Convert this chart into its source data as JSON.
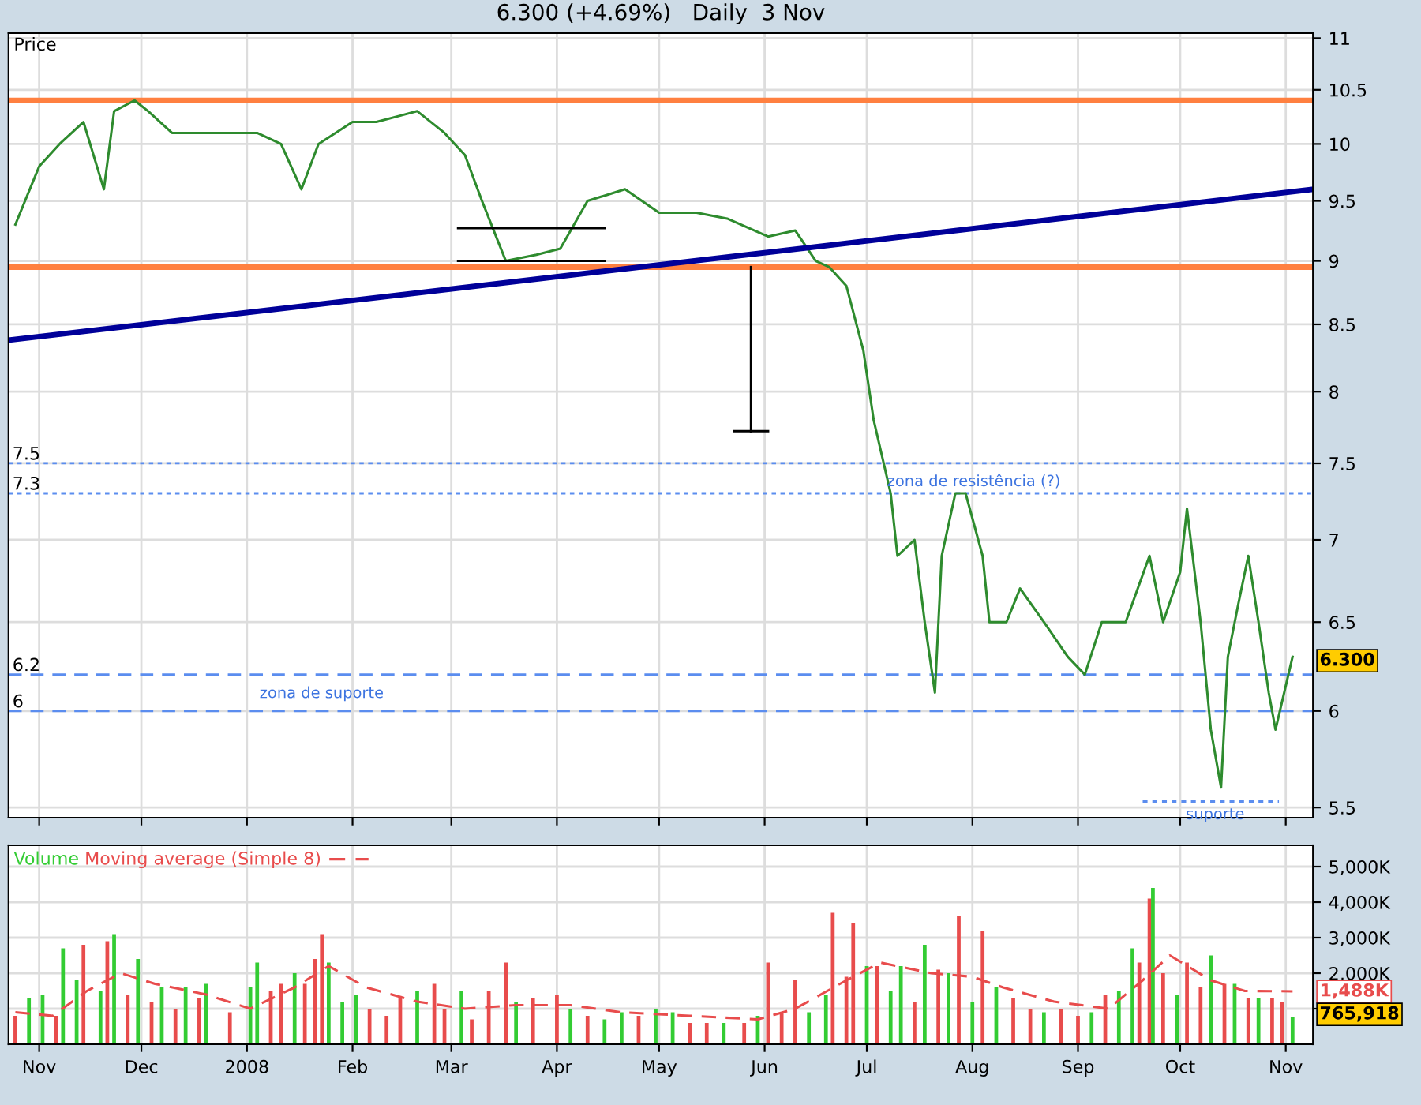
{
  "chart_data": [
    {
      "type": "line",
      "title": "6.300 (+4.69%)   Daily  3 Nov",
      "xlim": [
        "2007-10-23",
        "2008-11-09"
      ],
      "xticks": [
        {
          "value": "2007-11-01",
          "label": null
        },
        {
          "value": "2007-12-01",
          "label": null
        },
        {
          "value": "2008-01-01",
          "label": null
        },
        {
          "value": "2008-02-01",
          "label": null
        },
        {
          "value": "2008-03-01",
          "label": null
        },
        {
          "value": "2008-04-01",
          "label": null
        },
        {
          "value": "2008-05-01",
          "label": null
        },
        {
          "value": "2008-06-01",
          "label": null
        },
        {
          "value": "2008-07-01",
          "label": null
        },
        {
          "value": "2008-08-01",
          "label": null
        },
        {
          "value": "2008-09-01",
          "label": null
        },
        {
          "value": "2008-10-01",
          "label": null
        },
        {
          "value": "2008-11-01",
          "label": null
        }
      ],
      "log": "y",
      "ylim": [
        5.45,
        11.05
      ],
      "yticks": [
        5.5,
        6,
        6.5,
        7,
        7.5,
        8,
        8.5,
        9,
        9.5,
        10,
        10.5,
        11
      ],
      "tick_labels": "y",
      "grid": true,
      "marker": "none",
      "series": [
        {
          "color": "#2e8b2e",
          "x": [
            "2007-10-25",
            "2007-11-01",
            "2007-11-07",
            "2007-11-14",
            "2007-11-20",
            "2007-11-23",
            "2007-11-29",
            "2007-12-03",
            "2007-12-10",
            "2007-12-20",
            "2008-01-04",
            "2008-01-11",
            "2008-01-17",
            "2008-01-22",
            "2008-02-01",
            "2008-02-08",
            "2008-02-20",
            "2008-02-28",
            "2008-03-05",
            "2008-03-10",
            "2008-03-17",
            "2008-03-26",
            "2008-04-02",
            "2008-04-10",
            "2008-04-21",
            "2008-05-01",
            "2008-05-12",
            "2008-05-21",
            "2008-06-02",
            "2008-06-10",
            "2008-06-16",
            "2008-06-20",
            "2008-06-25",
            "2008-06-30",
            "2008-07-03",
            "2008-07-08",
            "2008-07-10",
            "2008-07-15",
            "2008-07-18",
            "2008-07-21",
            "2008-07-23",
            "2008-07-27",
            "2008-07-30",
            "2008-08-04",
            "2008-08-06",
            "2008-08-11",
            "2008-08-15",
            "2008-08-22",
            "2008-08-29",
            "2008-09-03",
            "2008-09-08",
            "2008-09-15",
            "2008-09-22",
            "2008-09-26",
            "2008-10-01",
            "2008-10-03",
            "2008-10-07",
            "2008-10-10",
            "2008-10-13",
            "2008-10-15",
            "2008-10-18",
            "2008-10-21",
            "2008-10-24",
            "2008-10-27",
            "2008-10-29",
            "2008-11-03"
          ],
          "values": [
            9.3,
            9.8,
            10.0,
            10.2,
            9.6,
            10.3,
            10.4,
            10.3,
            10.1,
            10.1,
            10.1,
            10.0,
            9.6,
            10.0,
            10.2,
            10.2,
            10.3,
            10.1,
            9.9,
            9.5,
            9.0,
            9.05,
            9.1,
            9.5,
            9.6,
            9.4,
            9.4,
            9.35,
            9.2,
            9.25,
            9.0,
            8.95,
            8.8,
            8.3,
            7.8,
            7.3,
            6.9,
            7.0,
            6.5,
            6.1,
            6.9,
            7.3,
            7.3,
            6.9,
            6.5,
            6.5,
            6.7,
            6.5,
            6.3,
            6.2,
            6.5,
            6.5,
            6.9,
            6.5,
            6.8,
            7.2,
            6.5,
            5.9,
            5.6,
            6.3,
            6.6,
            6.9,
            6.5,
            6.1,
            5.9,
            6.3
          ]
        },
        {
          "color": "#000099",
          "x": [
            "2007-10-23",
            "2008-11-09"
          ],
          "values": [
            8.38,
            9.6
          ]
        },
        {
          "color": "#000000",
          "x": [
            "2008-03-03",
            "2008-04-15"
          ],
          "values": [
            9.27,
            9.27
          ]
        },
        {
          "color": "#000000",
          "x": [
            "2008-03-03",
            "2008-04-15"
          ],
          "values": [
            9.0,
            9.0
          ]
        },
        {
          "color": "#000000",
          "x": [
            "2008-05-28",
            "2008-05-28"
          ],
          "values": [
            8.95,
            7.72
          ]
        },
        {
          "color": "#000000",
          "x": [
            "2008-05-23",
            "2008-06-02"
          ],
          "values": [
            7.72,
            7.72
          ]
        },
        {
          "color": "#5b8def",
          "line_style": "dotted",
          "x": [
            "2008-09-20",
            "2008-10-30"
          ],
          "values": [
            5.53,
            5.53
          ]
        }
      ],
      "ref_lines": [
        {
          "axis": "y",
          "value": 10.4,
          "label": null,
          "color": "#ff8040",
          "line_style": "solid"
        },
        {
          "axis": "y",
          "value": 8.95,
          "label": null,
          "color": "#ff8040",
          "line_style": "solid"
        },
        {
          "axis": "y",
          "value": 7.5,
          "label": "7.5",
          "color": "#5b8def",
          "line_style": "dotted"
        },
        {
          "axis": "y",
          "value": 7.3,
          "label": "7.3",
          "color": "#5b8def",
          "line_style": "dotted"
        },
        {
          "axis": "y",
          "value": 6.2,
          "label": "6.2",
          "color": "#5b8def",
          "line_style": "dashed"
        },
        {
          "axis": "y",
          "value": 6,
          "label": "6",
          "color": "#5b8def",
          "line_style": "dashed"
        }
      ],
      "annotations": [
        "Price",
        "zona de resistência (?)",
        "zona de suporte",
        "suporte",
        "6.300"
      ]
    },
    {
      "type": "bar",
      "xlim": [
        "2007-10-23",
        "2008-11-09"
      ],
      "xticks": [
        {
          "value": "2007-11-01",
          "label": "Nov"
        },
        {
          "value": "2007-12-01",
          "label": "Dec"
        },
        {
          "value": "2008-01-01",
          "label": "2008"
        },
        {
          "value": "2008-02-01",
          "label": "Feb"
        },
        {
          "value": "2008-03-01",
          "label": "Mar"
        },
        {
          "value": "2008-04-01",
          "label": "Apr"
        },
        {
          "value": "2008-05-01",
          "label": "May"
        },
        {
          "value": "2008-06-01",
          "label": "Jun"
        },
        {
          "value": "2008-07-01",
          "label": "Jul"
        },
        {
          "value": "2008-08-01",
          "label": "Aug"
        },
        {
          "value": "2008-09-01",
          "label": "Sep"
        },
        {
          "value": "2008-10-01",
          "label": "Oct"
        },
        {
          "value": "2008-11-01",
          "label": "Nov"
        }
      ],
      "ylim": [
        0,
        5600000
      ],
      "yticks": [
        {
          "value": 1000000,
          "label": null
        },
        {
          "value": 2000000,
          "label": "2,000K"
        },
        {
          "value": 3000000,
          "label": "3,000K"
        },
        {
          "value": 4000000,
          "label": "4,000K"
        },
        {
          "value": 5000000,
          "label": "5,000K"
        }
      ],
      "grid": true,
      "series": [
        {
          "name": "Volume",
          "color": "#33cc33",
          "x": [
            "2007-10-25",
            "2007-10-29",
            "2007-11-02",
            "2007-11-06",
            "2007-11-08",
            "2007-11-12",
            "2007-11-14",
            "2007-11-19",
            "2007-11-21",
            "2007-11-23",
            "2007-11-27",
            "2007-11-30",
            "2007-12-04",
            "2007-12-07",
            "2007-12-11",
            "2007-12-14",
            "2007-12-18",
            "2007-12-20",
            "2007-12-27",
            "2008-01-02",
            "2008-01-04",
            "2008-01-08",
            "2008-01-11",
            "2008-01-15",
            "2008-01-18",
            "2008-01-21",
            "2008-01-23",
            "2008-01-25",
            "2008-01-29",
            "2008-02-02",
            "2008-02-06",
            "2008-02-11",
            "2008-02-15",
            "2008-02-20",
            "2008-02-25",
            "2008-02-28",
            "2008-03-04",
            "2008-03-07",
            "2008-03-12",
            "2008-03-17",
            "2008-03-20",
            "2008-03-25",
            "2008-04-01",
            "2008-04-05",
            "2008-04-10",
            "2008-04-15",
            "2008-04-20",
            "2008-04-25",
            "2008-04-30",
            "2008-05-05",
            "2008-05-10",
            "2008-05-15",
            "2008-05-20",
            "2008-05-26",
            "2008-05-30",
            "2008-06-02",
            "2008-06-06",
            "2008-06-10",
            "2008-06-14",
            "2008-06-19",
            "2008-06-21",
            "2008-06-25",
            "2008-06-27",
            "2008-07-01",
            "2008-07-04",
            "2008-07-08",
            "2008-07-11",
            "2008-07-15",
            "2008-07-18",
            "2008-07-22",
            "2008-07-25",
            "2008-07-28",
            "2008-08-01",
            "2008-08-04",
            "2008-08-08",
            "2008-08-13",
            "2008-08-18",
            "2008-08-22",
            "2008-08-27",
            "2008-09-01",
            "2008-09-05",
            "2008-09-09",
            "2008-09-13",
            "2008-09-17",
            "2008-09-19",
            "2008-09-22",
            "2008-09-23",
            "2008-09-26",
            "2008-09-30",
            "2008-10-03",
            "2008-10-07",
            "2008-10-10",
            "2008-10-14",
            "2008-10-17",
            "2008-10-21",
            "2008-10-24",
            "2008-10-28",
            "2008-10-31",
            "2008-11-03"
          ],
          "values": [
            800000,
            1300000,
            1400000,
            800000,
            2700000,
            1800000,
            2800000,
            1500000,
            2900000,
            3100000,
            1400000,
            2400000,
            1200000,
            1600000,
            1000000,
            1600000,
            1300000,
            1700000,
            900000,
            1600000,
            2300000,
            1500000,
            1700000,
            2000000,
            1700000,
            2400000,
            3100000,
            2300000,
            1200000,
            1400000,
            1000000,
            800000,
            1300000,
            1500000,
            1700000,
            1000000,
            1500000,
            700000,
            1500000,
            2300000,
            1200000,
            1300000,
            1400000,
            1000000,
            800000,
            700000,
            900000,
            800000,
            1000000,
            900000,
            600000,
            600000,
            600000,
            600000,
            800000,
            2300000,
            900000,
            1800000,
            900000,
            1400000,
            3700000,
            1900000,
            3400000,
            2200000,
            2200000,
            1500000,
            2200000,
            1200000,
            2800000,
            2100000,
            2000000,
            3600000,
            1200000,
            3200000,
            1600000,
            1300000,
            1000000,
            900000,
            1000000,
            800000,
            900000,
            1400000,
            1500000,
            2700000,
            2300000,
            4100000,
            4400000,
            2000000,
            1400000,
            2300000,
            1600000,
            2500000,
            1700000,
            1700000,
            1300000,
            1300000,
            1300000,
            1200000,
            770000
          ],
          "colors": [
            "#e84c4c",
            "#33cc33",
            "#33cc33",
            "#e84c4c",
            "#33cc33",
            "#33cc33",
            "#e84c4c",
            "#33cc33",
            "#e84c4c",
            "#33cc33",
            "#e84c4c",
            "#33cc33",
            "#e84c4c",
            "#33cc33",
            "#e84c4c",
            "#33cc33",
            "#e84c4c",
            "#33cc33",
            "#e84c4c",
            "#33cc33",
            "#33cc33",
            "#e84c4c",
            "#e84c4c",
            "#33cc33",
            "#e84c4c",
            "#e84c4c",
            "#e84c4c",
            "#33cc33",
            "#33cc33",
            "#33cc33",
            "#e84c4c",
            "#e84c4c",
            "#e84c4c",
            "#33cc33",
            "#e84c4c",
            "#e84c4c",
            "#33cc33",
            "#e84c4c",
            "#e84c4c",
            "#e84c4c",
            "#33cc33",
            "#e84c4c",
            "#e84c4c",
            "#33cc33",
            "#e84c4c",
            "#33cc33",
            "#33cc33",
            "#e84c4c",
            "#33cc33",
            "#33cc33",
            "#e84c4c",
            "#e84c4c",
            "#33cc33",
            "#e84c4c",
            "#33cc33",
            "#e84c4c",
            "#e84c4c",
            "#e84c4c",
            "#33cc33",
            "#33cc33",
            "#e84c4c",
            "#e84c4c",
            "#e84c4c",
            "#33cc33",
            "#e84c4c",
            "#33cc33",
            "#33cc33",
            "#e84c4c",
            "#33cc33",
            "#e84c4c",
            "#33cc33",
            "#e84c4c",
            "#33cc33",
            "#e84c4c",
            "#33cc33",
            "#e84c4c",
            "#e84c4c",
            "#33cc33",
            "#e84c4c",
            "#e84c4c",
            "#33cc33",
            "#e84c4c",
            "#33cc33",
            "#33cc33",
            "#e84c4c",
            "#e84c4c",
            "#33cc33",
            "#e84c4c",
            "#33cc33",
            "#e84c4c",
            "#e84c4c",
            "#33cc33",
            "#e84c4c",
            "#33cc33",
            "#e84c4c",
            "#33cc33",
            "#e84c4c",
            "#e84c4c",
            "#33cc33"
          ]
        },
        {
          "name": "Moving average (Simple 8)",
          "type": "line",
          "line_style": "dashed",
          "color": "#e84c4c",
          "x": [
            "2007-10-25",
            "2007-11-05",
            "2007-11-15",
            "2007-11-25",
            "2007-12-05",
            "2007-12-20",
            "2008-01-02",
            "2008-01-15",
            "2008-01-25",
            "2008-02-05",
            "2008-02-20",
            "2008-03-05",
            "2008-03-20",
            "2008-04-05",
            "2008-04-20",
            "2008-05-10",
            "2008-05-30",
            "2008-06-10",
            "2008-06-25",
            "2008-07-05",
            "2008-07-20",
            "2008-08-01",
            "2008-08-10",
            "2008-08-25",
            "2008-09-10",
            "2008-09-20",
            "2008-09-28",
            "2008-10-10",
            "2008-10-20",
            "2008-11-03"
          ],
          "values": [
            900000,
            800000,
            1500000,
            2000000,
            1700000,
            1400000,
            1000000,
            1600000,
            2200000,
            1600000,
            1200000,
            1000000,
            1100000,
            1100000,
            900000,
            800000,
            700000,
            1000000,
            1800000,
            2300000,
            2000000,
            1900000,
            1600000,
            1200000,
            1000000,
            1800000,
            2500000,
            1800000,
            1500000,
            1490000
          ]
        }
      ],
      "annotations": [
        "1,488K",
        "765,918"
      ]
    }
  ]
}
